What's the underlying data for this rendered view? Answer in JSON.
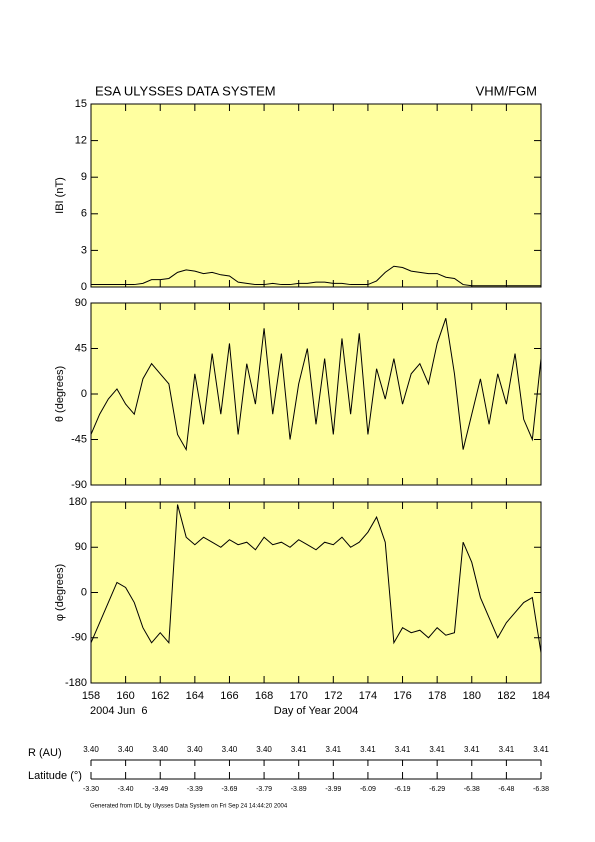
{
  "header": {
    "title": "ESA ULYSSES DATA SYSTEM",
    "instrument": "VHM/FGM"
  },
  "chart_data": [
    {
      "type": "line",
      "ylabel": "IBI (nT)",
      "ylim": [
        0,
        15
      ],
      "yticks": [
        0,
        3,
        6,
        9,
        12,
        15
      ],
      "xlim": [
        158,
        184
      ],
      "xticks": [
        158,
        160,
        162,
        164,
        166,
        168,
        170,
        172,
        174,
        176,
        178,
        180,
        182,
        184
      ],
      "background": "#ffffa0",
      "series": [
        {
          "color": "#000000",
          "x": [
            158,
            158.5,
            159,
            159.5,
            160,
            160.5,
            161,
            161.5,
            162,
            162.5,
            163,
            163.5,
            164,
            164.5,
            165,
            165.5,
            166,
            166.5,
            167,
            167.5,
            168,
            168.5,
            169,
            169.5,
            170,
            170.5,
            171,
            171.5,
            172,
            172.5,
            173,
            173.5,
            174,
            174.5,
            175,
            175.5,
            176,
            176.5,
            177,
            177.5,
            178,
            178.5,
            179,
            179.5,
            180,
            180.5,
            181,
            181.5,
            182,
            182.5,
            183,
            183.5,
            184
          ],
          "values": [
            0.2,
            0.2,
            0.2,
            0.2,
            0.2,
            0.2,
            0.3,
            0.6,
            0.6,
            0.7,
            1.2,
            1.4,
            1.3,
            1.1,
            1.2,
            1.0,
            0.9,
            0.4,
            0.3,
            0.2,
            0.2,
            0.3,
            0.2,
            0.2,
            0.3,
            0.3,
            0.4,
            0.4,
            0.3,
            0.3,
            0.2,
            0.2,
            0.2,
            0.5,
            1.2,
            1.7,
            1.6,
            1.3,
            1.2,
            1.1,
            1.1,
            0.8,
            0.7,
            0.2,
            0.1,
            0.1,
            0.1,
            0.1,
            0.1,
            0.1,
            0.1,
            0.1,
            0.1
          ]
        }
      ]
    },
    {
      "type": "line",
      "ylabel": "θ (degrees)",
      "ylim": [
        -90,
        90
      ],
      "yticks": [
        -90,
        -45,
        0,
        45,
        90
      ],
      "xlim": [
        158,
        184
      ],
      "xticks": [
        158,
        160,
        162,
        164,
        166,
        168,
        170,
        172,
        174,
        176,
        178,
        180,
        182,
        184
      ],
      "background": "#ffffa0",
      "series": [
        {
          "color": "#000000",
          "x": [
            158,
            158.5,
            159,
            159.5,
            160,
            160.5,
            161,
            161.5,
            162,
            162.5,
            163,
            163.5,
            164,
            164.5,
            165,
            165.5,
            166,
            166.5,
            167,
            167.5,
            168,
            168.5,
            169,
            169.5,
            170,
            170.5,
            171,
            171.5,
            172,
            172.5,
            173,
            173.5,
            174,
            174.5,
            175,
            175.5,
            176,
            176.5,
            177,
            177.5,
            178,
            178.5,
            179,
            179.5,
            180,
            180.5,
            181,
            181.5,
            182,
            182.5,
            183,
            183.5,
            184
          ],
          "values": [
            -40,
            -20,
            -5,
            5,
            -10,
            -20,
            15,
            30,
            20,
            10,
            -40,
            -55,
            20,
            -30,
            40,
            -20,
            50,
            -40,
            30,
            -10,
            65,
            -20,
            40,
            -45,
            10,
            45,
            -30,
            35,
            -40,
            55,
            -20,
            60,
            -40,
            25,
            -5,
            35,
            -10,
            20,
            30,
            10,
            50,
            75,
            20,
            -55,
            -20,
            15,
            -30,
            20,
            -10,
            40,
            -25,
            -45,
            35
          ]
        }
      ]
    },
    {
      "type": "line",
      "ylabel": "φ (degrees)",
      "ylim": [
        -180,
        180
      ],
      "yticks": [
        -180,
        -90,
        0,
        90,
        180
      ],
      "xlim": [
        158,
        184
      ],
      "xticks": [
        158,
        160,
        162,
        164,
        166,
        168,
        170,
        172,
        174,
        176,
        178,
        180,
        182,
        184
      ],
      "background": "#ffffa0",
      "xlabel": "Day of Year 2004",
      "date_label": "2004 Jun  6",
      "series": [
        {
          "color": "#000000",
          "x": [
            158,
            158.5,
            159,
            159.5,
            160,
            160.5,
            161,
            161.5,
            162,
            162.5,
            163,
            163.5,
            164,
            164.5,
            165,
            165.5,
            166,
            166.5,
            167,
            167.5,
            168,
            168.5,
            169,
            169.5,
            170,
            170.5,
            171,
            171.5,
            172,
            172.5,
            173,
            173.5,
            174,
            174.5,
            175,
            175.5,
            176,
            176.5,
            177,
            177.5,
            178,
            178.5,
            179,
            179.5,
            180,
            180.5,
            181,
            181.5,
            182,
            182.5,
            183,
            183.5,
            184
          ],
          "values": [
            -100,
            -60,
            -20,
            20,
            10,
            -20,
            -70,
            -100,
            -80,
            -100,
            175,
            110,
            95,
            110,
            100,
            90,
            105,
            95,
            100,
            85,
            110,
            95,
            100,
            90,
            105,
            95,
            85,
            100,
            95,
            110,
            90,
            100,
            120,
            150,
            100,
            -100,
            -70,
            -80,
            -75,
            -90,
            -70,
            -85,
            -80,
            100,
            60,
            -10,
            -50,
            -90,
            -60,
            -40,
            -20,
            -10,
            -120
          ]
        }
      ]
    }
  ],
  "orbit": {
    "r_label": "R (AU)",
    "r_values": [
      "3.40",
      "3.40",
      "3.40",
      "3.40",
      "3.40",
      "3.40",
      "3.41",
      "3.41",
      "3.41",
      "3.41",
      "3.41",
      "3.41",
      "3.41",
      "3.41"
    ],
    "lat_label": "Latitude (°)",
    "lat_values": [
      "-3.30",
      "-3.40",
      "-3.49",
      "-3.39",
      "-3.69",
      "-3.79",
      "-3.89",
      "-3.99",
      "-6.09",
      "-6.19",
      "-6.29",
      "-6.38",
      "-6.48",
      "-6.38"
    ]
  },
  "footer": "Generated from IDL by Ulysses Data System on Fri Sep 24 14:44:20 2004"
}
